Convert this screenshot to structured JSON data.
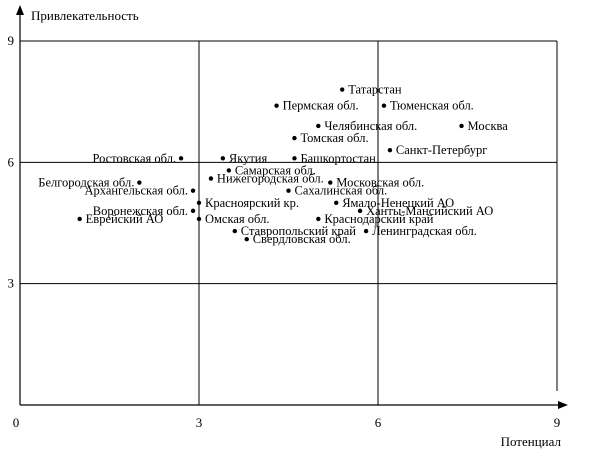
{
  "chart_data": {
    "type": "scatter",
    "ylabel": "Привлекательность",
    "xlabel": "Потенциал",
    "xlim": [
      0,
      9
    ],
    "ylim": [
      0,
      9
    ],
    "x_ticks": [
      "0",
      "3",
      "6",
      "9"
    ],
    "y_ticks": [
      "3",
      "6",
      "9"
    ],
    "quadrant_lines": {
      "x": [
        3,
        6
      ],
      "y": [
        3,
        6
      ]
    },
    "colors": {
      "axis": "#000000",
      "grid": "#000000",
      "point": "#000000",
      "background": "#ffffff"
    },
    "points": [
      {
        "label": "Татарстан",
        "x": 5.4,
        "y": 7.8
      },
      {
        "label": "Пермская обл.",
        "x": 4.3,
        "y": 7.4
      },
      {
        "label": "Тюменская обл.",
        "x": 6.1,
        "y": 7.4
      },
      {
        "label": "Челябинская обл.",
        "x": 5.0,
        "y": 6.9
      },
      {
        "label": "Москва",
        "x": 7.4,
        "y": 6.9
      },
      {
        "label": "Томская обл.",
        "x": 4.6,
        "y": 6.6
      },
      {
        "label": "Санкт-Петербург",
        "x": 6.2,
        "y": 6.3
      },
      {
        "label": "Ростовская обл.",
        "x": 2.7,
        "y": 6.1
      },
      {
        "label": "Якутия",
        "x": 3.4,
        "y": 6.1
      },
      {
        "label": "Башкортостан",
        "x": 4.6,
        "y": 6.1
      },
      {
        "label": "Самарская обл.",
        "x": 3.5,
        "y": 5.8
      },
      {
        "label": "Белгородская обл.",
        "x": 2.0,
        "y": 5.5
      },
      {
        "label": "Нижегородская обл.",
        "x": 3.2,
        "y": 5.6
      },
      {
        "label": "Московская обл.",
        "x": 5.2,
        "y": 5.5
      },
      {
        "label": "Архангельская обл.",
        "x": 2.9,
        "y": 5.3
      },
      {
        "label": "Сахалинская обл.",
        "x": 4.5,
        "y": 5.3
      },
      {
        "label": "Красноярский кр.",
        "x": 3.0,
        "y": 5.0
      },
      {
        "label": "Ямало-Ненецкий АО",
        "x": 5.3,
        "y": 5.0
      },
      {
        "label": "Воронежская обл.",
        "x": 2.9,
        "y": 4.8
      },
      {
        "label": "Ханты-Мансийский АО",
        "x": 5.7,
        "y": 4.8
      },
      {
        "label": "Еврейский АО",
        "x": 1.0,
        "y": 4.6
      },
      {
        "label": "Омская обл.",
        "x": 3.0,
        "y": 4.6
      },
      {
        "label": "Краснодарский край",
        "x": 5.0,
        "y": 4.6
      },
      {
        "label": "Ставропольский край",
        "x": 3.6,
        "y": 4.3
      },
      {
        "label": "Ленинградская обл.",
        "x": 5.8,
        "y": 4.3
      },
      {
        "label": "Свердловская обл.",
        "x": 3.8,
        "y": 4.1
      }
    ]
  }
}
